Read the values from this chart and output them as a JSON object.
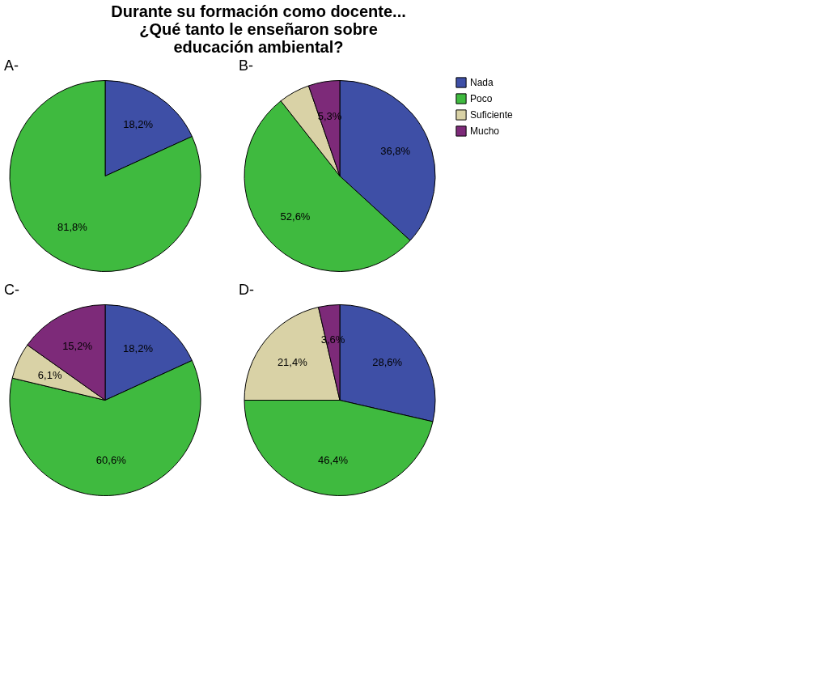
{
  "chart_data": [
    {
      "type": "pie",
      "title": "Durante su formación como docente...\n¿Qué tanto le enseñaron sobre\neducación ambiental?",
      "subtitle": "A-",
      "categories": [
        null,
        null
      ],
      "values": [
        18.2,
        81.8
      ],
      "colors": [
        "#3e4fa6",
        "#3fba3f"
      ],
      "value_labels": [
        "18,2%",
        "81,8%"
      ]
    },
    {
      "type": "pie",
      "subtitle": "B-",
      "categories": [
        "Nada",
        "Poco",
        "Suficiente",
        "Mucho"
      ],
      "values": [
        36.8,
        52.6,
        5.3,
        5.3
      ],
      "colors": [
        "#3e4fa6",
        "#3fba3f",
        "#d9d2a6",
        "#7d2a79"
      ],
      "value_labels": [
        "36,8%",
        "52,6%",
        null,
        "5,3%"
      ],
      "legend": "right"
    },
    {
      "type": "pie",
      "subtitle": "C-",
      "categories": [
        null,
        null,
        null,
        null
      ],
      "values": [
        18.2,
        60.6,
        6.1,
        15.2
      ],
      "colors": [
        "#3e4fa6",
        "#3fba3f",
        "#d9d2a6",
        "#7d2a79"
      ],
      "value_labels": [
        "18,2%",
        "60,6%",
        "6,1%",
        "15,2%"
      ]
    },
    {
      "type": "pie",
      "subtitle": "D-",
      "categories": [
        null,
        null,
        null,
        null
      ],
      "values": [
        28.6,
        46.4,
        21.4,
        3.6
      ],
      "colors": [
        "#3e4fa6",
        "#3fba3f",
        "#d9d2a6",
        "#7d2a79"
      ],
      "value_labels": [
        "28,6%",
        "46,4%",
        "21,4%",
        "3,6%"
      ]
    }
  ]
}
